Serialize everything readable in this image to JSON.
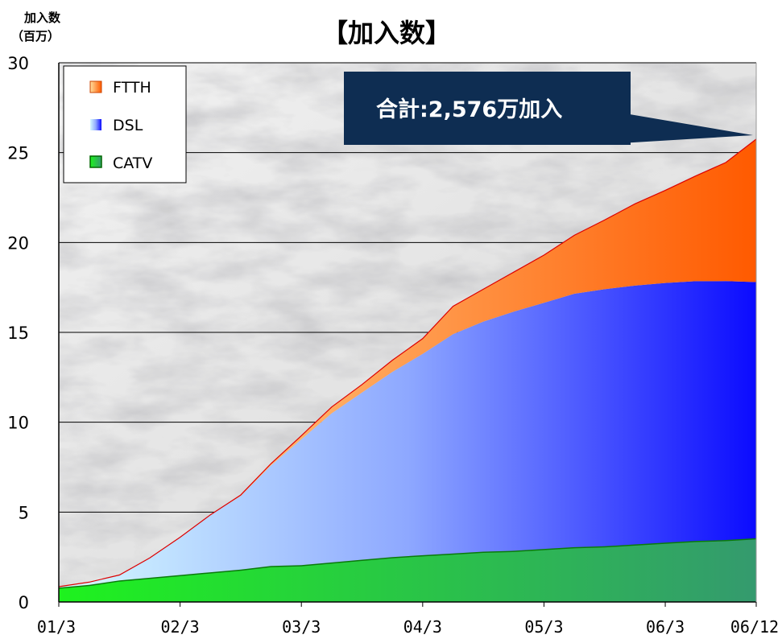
{
  "chart_data": {
    "type": "area",
    "title": "【加入数】",
    "ylabel_line1": "加入数",
    "ylabel_line2": "（百万）",
    "ylim": [
      0,
      30
    ],
    "yticks": [
      "0",
      "5",
      "10",
      "15",
      "20",
      "25",
      "30"
    ],
    "xticks": [
      "01/3",
      "02/3",
      "03/3",
      "04/3",
      "05/3",
      "06/3",
      "06/12"
    ],
    "grid": "horizontal",
    "legend_position": "top-left",
    "stacked": true,
    "x": [
      "01/3",
      "01/6",
      "01/9",
      "01/12",
      "02/3",
      "02/6",
      "02/9",
      "02/12",
      "03/3",
      "03/6",
      "03/9",
      "03/12",
      "04/3",
      "04/6",
      "04/9",
      "04/12",
      "05/3",
      "05/6",
      "05/9",
      "05/12",
      "06/3",
      "06/6",
      "06/9",
      "06/12"
    ],
    "series": [
      {
        "name": "CATV",
        "color": "#22bb33",
        "values": [
          0.8,
          0.95,
          1.2,
          1.35,
          1.5,
          1.65,
          1.8,
          2.0,
          2.05,
          2.2,
          2.35,
          2.5,
          2.6,
          2.7,
          2.8,
          2.85,
          2.95,
          3.05,
          3.1,
          3.2,
          3.3,
          3.4,
          3.45,
          3.55
        ]
      },
      {
        "name": "DSL",
        "color": "#3344ff",
        "values": [
          0.05,
          0.15,
          0.3,
          1.1,
          2.1,
          3.2,
          4.1,
          5.6,
          7.0,
          8.3,
          9.3,
          10.3,
          11.2,
          12.2,
          12.8,
          13.3,
          13.7,
          14.1,
          14.3,
          14.4,
          14.45,
          14.45,
          14.4,
          14.25
        ]
      },
      {
        "name": "FTTH",
        "color": "#ff6600",
        "values": [
          0,
          0,
          0,
          0,
          0,
          0,
          0.05,
          0.1,
          0.2,
          0.35,
          0.45,
          0.65,
          0.85,
          1.55,
          1.8,
          2.2,
          2.65,
          3.25,
          3.85,
          4.55,
          5.15,
          5.85,
          6.6,
          7.95
        ]
      }
    ],
    "annotation": "合計:2,576万加入"
  },
  "colors": {
    "ftth_light": "#ffd080",
    "ftth_dark": "#ff5a00",
    "dsl_light": "#c8f4ff",
    "dsl_dark": "#1010ff",
    "catv_light": "#22ee22",
    "catv_dark": "#2f8f6f",
    "callout_bg": "#0e2d52"
  }
}
